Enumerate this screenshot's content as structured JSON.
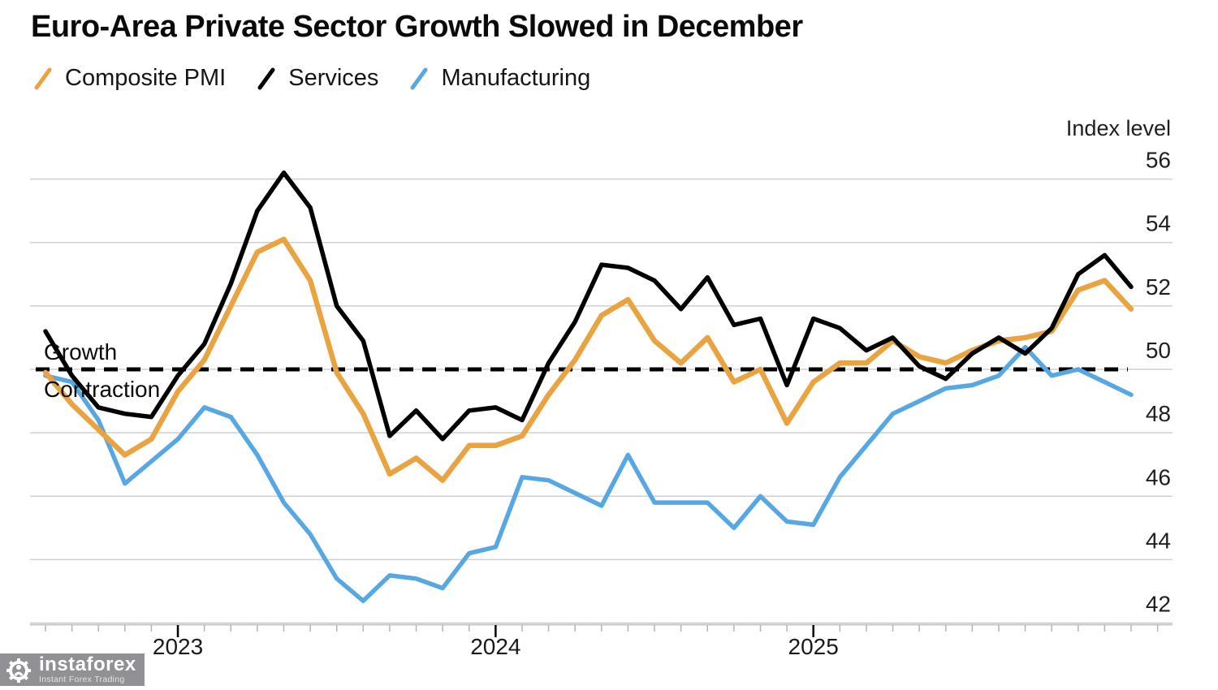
{
  "title": "Euro-Area Private Sector Growth Slowed in December",
  "legend": [
    {
      "label": "Composite PMI",
      "color": "#E9A340"
    },
    {
      "label": "Services",
      "color": "#000000"
    },
    {
      "label": "Manufacturing",
      "color": "#57A8E2"
    }
  ],
  "axis": {
    "y_title": "Index level",
    "y_ticks": [
      56,
      54,
      52,
      50,
      48,
      46,
      44,
      42
    ],
    "x_tick_years": [
      "2023",
      "2024",
      "2025"
    ]
  },
  "annotations": {
    "above_line": "Growth",
    "below_line": "Contraction"
  },
  "watermark": {
    "name": "instaforex",
    "tagline": "Instant Forex Trading"
  },
  "chart_data": {
    "type": "line",
    "title": "Euro-Area Private Sector Growth Slowed in December",
    "ylabel": "Index level",
    "ylim": [
      42,
      56
    ],
    "threshold_line": 50,
    "frequency": "monthly",
    "x_start": "2022-07",
    "x_end": "2025-12",
    "grid": "horizontal",
    "legend_position": "top",
    "series": [
      {
        "name": "Composite PMI",
        "color": "#E9A340",
        "values": [
          49.9,
          48.9,
          48.1,
          47.3,
          47.8,
          49.3,
          50.3,
          52.0,
          53.7,
          54.1,
          52.8,
          49.9,
          48.6,
          46.7,
          47.2,
          46.5,
          47.6,
          47.6,
          47.9,
          49.2,
          50.3,
          51.7,
          52.2,
          50.9,
          50.2,
          51.0,
          49.6,
          50.0,
          48.3,
          49.6,
          50.2,
          50.2,
          50.9,
          50.4,
          50.2,
          50.6,
          50.9,
          51.0,
          51.2,
          52.5,
          52.8,
          51.9
        ]
      },
      {
        "name": "Services",
        "color": "#000000",
        "values": [
          51.2,
          49.8,
          48.8,
          48.6,
          48.5,
          49.8,
          50.8,
          52.7,
          55.0,
          56.2,
          55.1,
          52.0,
          50.9,
          47.9,
          48.7,
          47.8,
          48.7,
          48.8,
          48.4,
          50.2,
          51.5,
          53.3,
          53.2,
          52.8,
          51.9,
          52.9,
          51.4,
          51.6,
          49.5,
          51.6,
          51.3,
          50.6,
          51.0,
          50.1,
          49.7,
          50.5,
          51.0,
          50.5,
          51.3,
          53.0,
          53.6,
          52.6
        ]
      },
      {
        "name": "Manufacturing",
        "color": "#57A8E2",
        "values": [
          49.8,
          49.6,
          48.4,
          46.4,
          47.1,
          47.8,
          48.8,
          48.5,
          47.3,
          45.8,
          44.8,
          43.4,
          42.7,
          43.5,
          43.4,
          43.1,
          44.2,
          44.4,
          46.6,
          46.5,
          46.1,
          45.7,
          47.3,
          45.8,
          45.8,
          45.8,
          45.0,
          46.0,
          45.2,
          45.1,
          46.6,
          47.6,
          48.6,
          49.0,
          49.4,
          49.5,
          49.8,
          50.7,
          49.8,
          50.0,
          49.6,
          49.2
        ]
      }
    ]
  }
}
